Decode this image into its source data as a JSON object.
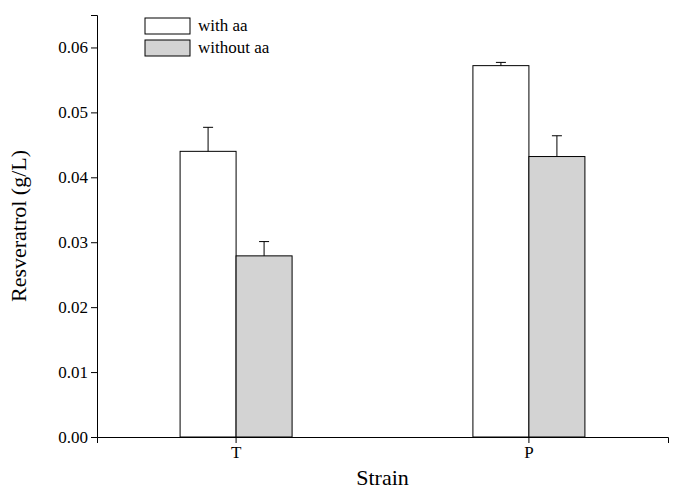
{
  "chart_data": {
    "type": "bar",
    "x_label": "Strain",
    "y_label": "Resveratrol (g/L)",
    "categories": [
      "T",
      "P"
    ],
    "series": [
      {
        "name": "with aa",
        "color": "#ffffff",
        "values": [
          0.044,
          0.0572
        ],
        "errors": [
          0.0037,
          0.0005
        ]
      },
      {
        "name": "without aa",
        "color": "#d3d3d3",
        "values": [
          0.0279,
          0.0432
        ],
        "errors": [
          0.0022,
          0.0032
        ]
      }
    ],
    "ylim": [
      0,
      0.065
    ],
    "yticks": [
      {
        "value": 0,
        "label": "0.00"
      },
      {
        "value": 0.01,
        "label": "0.01"
      },
      {
        "value": 0.02,
        "label": "0.02"
      },
      {
        "value": 0.03,
        "label": "0.03"
      },
      {
        "value": 0.04,
        "label": "0.04"
      },
      {
        "value": 0.05,
        "label": "0.05"
      },
      {
        "value": 0.06,
        "label": "0.06"
      }
    ],
    "grid": false,
    "legend": "upper left"
  }
}
